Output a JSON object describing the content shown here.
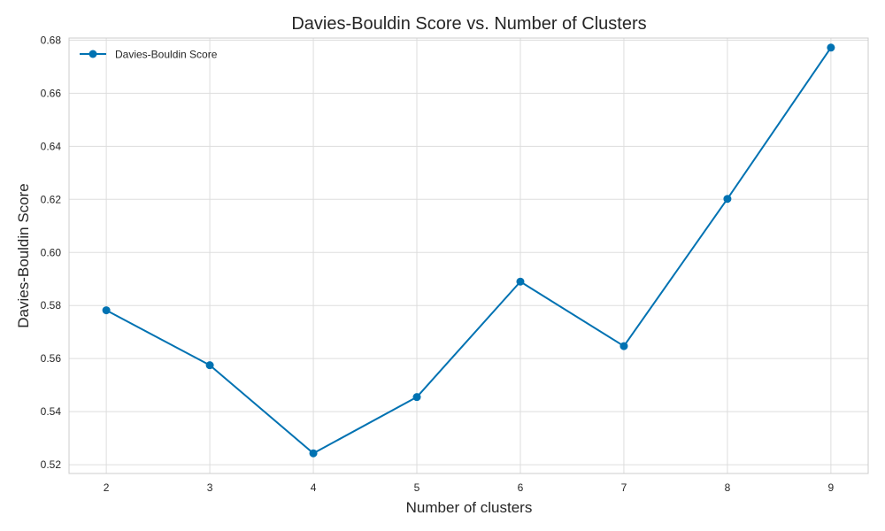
{
  "chart_data": {
    "type": "line",
    "title": "Davies-Bouldin Score vs. Number of Clusters",
    "xlabel": "Number of clusters",
    "ylabel": "Davies-Bouldin Score",
    "x": [
      2,
      3,
      4,
      5,
      6,
      7,
      8,
      9
    ],
    "series": [
      {
        "name": "Davies-Bouldin Score",
        "values": [
          0.5782,
          0.5575,
          0.5243,
          0.5455,
          0.589,
          0.5647,
          0.6202,
          0.6772
        ],
        "color": "#0072b2",
        "marker": "circle"
      }
    ],
    "xlim": [
      1.64,
      9.36
    ],
    "ylim": [
      0.5167,
      0.6808
    ],
    "xticks": [
      "2",
      "3",
      "4",
      "5",
      "6",
      "7",
      "8",
      "9"
    ],
    "yticks": [
      "0.52",
      "0.54",
      "0.56",
      "0.58",
      "0.60",
      "0.62",
      "0.64",
      "0.66",
      "0.68"
    ],
    "grid": true,
    "legend_position": "top-left"
  }
}
